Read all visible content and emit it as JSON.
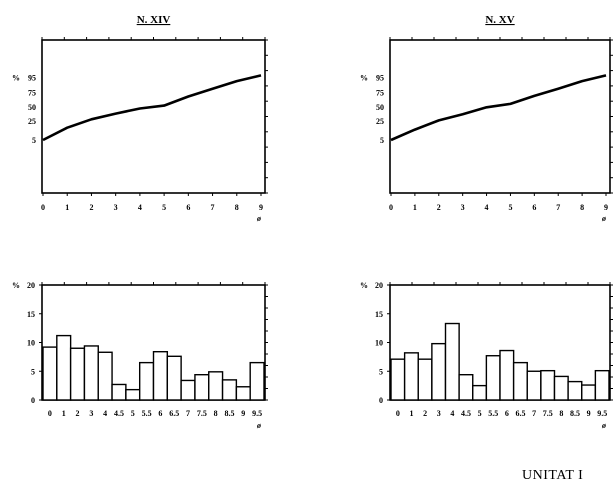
{
  "footer": {
    "text": "UNITAT I"
  },
  "chart_data": [
    {
      "type": "line",
      "title": "N. XIV",
      "ylabel": "%",
      "xlabel": "ø",
      "x": [
        0,
        1,
        2,
        3,
        4,
        5,
        6,
        7,
        8,
        9
      ],
      "x_ticks": [
        "0",
        "1",
        "2",
        "3",
        "4",
        "5",
        "6",
        "7",
        "8",
        "9"
      ],
      "y_ticks": [
        "5",
        "25",
        "50",
        "75",
        "95"
      ],
      "y_scale": "probability",
      "series": [
        {
          "values": [
            5,
            18,
            28,
            38,
            47,
            52,
            68,
            80,
            90,
            96
          ]
        }
      ]
    },
    {
      "type": "line",
      "title": "N. XV",
      "ylabel": "%",
      "xlabel": "ø",
      "x": [
        0,
        1,
        2,
        3,
        4,
        5,
        6,
        7,
        8,
        9
      ],
      "x_ticks": [
        "0",
        "1",
        "2",
        "3",
        "4",
        "5",
        "6",
        "7",
        "8",
        "9"
      ],
      "y_ticks": [
        "5",
        "25",
        "50",
        "75",
        "95"
      ],
      "y_scale": "probability",
      "series": [
        {
          "values": [
            5,
            16,
            26,
            37,
            49,
            55,
            69,
            80,
            90,
            96
          ]
        }
      ]
    },
    {
      "type": "bar",
      "ylabel": "%",
      "xlabel": "ø",
      "categories": [
        "0",
        "1",
        "2",
        "3",
        "4",
        "4.5",
        "5",
        "5.5",
        "6",
        "6.5",
        "7",
        "7.5",
        "8",
        "8.5",
        "9",
        "9.5"
      ],
      "x_ticks": [
        "0",
        "1",
        "2",
        "3",
        "4",
        "4.5",
        "5",
        "5.5",
        "6",
        "6.5",
        "7",
        "7.5",
        "8",
        "8.5",
        "9",
        "9.5"
      ],
      "y_ticks": [
        "0",
        "5",
        "10",
        "15",
        "20"
      ],
      "ylim": [
        0,
        20
      ],
      "values": [
        9.2,
        11.2,
        9.0,
        9.4,
        8.3,
        2.7,
        1.8,
        6.5,
        8.4,
        7.6,
        3.4,
        4.4,
        4.9,
        3.5,
        2.3,
        6.5
      ]
    },
    {
      "type": "bar",
      "ylabel": "%",
      "xlabel": "ø",
      "categories": [
        "0",
        "1",
        "2",
        "3",
        "4",
        "4.5",
        "5",
        "5.5",
        "6",
        "6.5",
        "7",
        "7.5",
        "8",
        "8.5",
        "9",
        "9.5"
      ],
      "x_ticks": [
        "0",
        "1",
        "2",
        "3",
        "4",
        "4.5",
        "5",
        "5.5",
        "6",
        "6.5",
        "7",
        "7.5",
        "8",
        "8.5",
        "9",
        "9.5"
      ],
      "y_ticks": [
        "0",
        "5",
        "10",
        "15",
        "20"
      ],
      "ylim": [
        0,
        20
      ],
      "values": [
        7.1,
        8.2,
        7.1,
        9.8,
        13.3,
        4.4,
        2.5,
        7.7,
        8.6,
        6.5,
        5.0,
        5.1,
        4.1,
        3.2,
        2.6,
        5.1
      ]
    }
  ]
}
